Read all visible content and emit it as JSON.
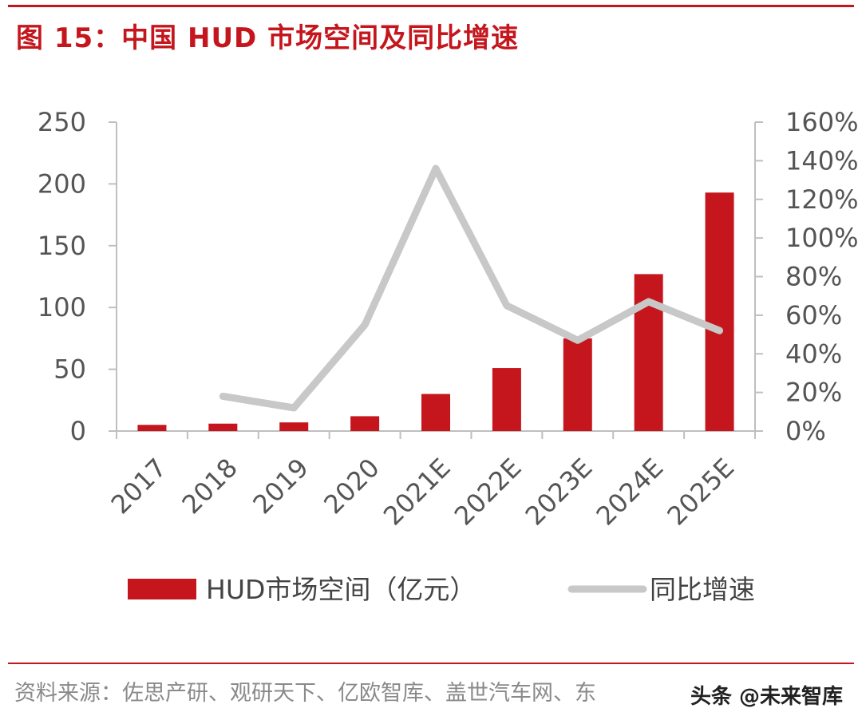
{
  "title": "图 15：中国 HUD 市场空间及同比增速",
  "source": "资料来源：佐思产研、观研天下、亿欧智库、盖世汽车网、东",
  "watermark": "头条 @未来智库",
  "colors": {
    "bar": "#c4161c",
    "line": "#c8c8c8",
    "axis": "#bfbfbf",
    "title": "#c4161c"
  },
  "chart_data": {
    "type": "bar+line",
    "categories": [
      "2017",
      "2018",
      "2019",
      "2020",
      "2021E",
      "2022E",
      "2023E",
      "2024E",
      "2025E"
    ],
    "series": [
      {
        "name": "HUD市场空间（亿元）",
        "type": "bar",
        "axis": "left",
        "values": [
          5,
          6,
          7,
          12,
          30,
          51,
          75,
          127,
          193
        ]
      },
      {
        "name": "同比增速",
        "type": "line",
        "axis": "right",
        "values": [
          null,
          0.18,
          0.12,
          0.55,
          1.36,
          0.65,
          0.47,
          0.67,
          0.52
        ]
      }
    ],
    "y_left": {
      "min": 0,
      "max": 250,
      "ticks": [
        0,
        50,
        100,
        150,
        200,
        250
      ]
    },
    "y_right": {
      "min": 0,
      "max": 1.6,
      "ticks": [
        "0%",
        "20%",
        "40%",
        "60%",
        "80%",
        "100%",
        "120%",
        "140%",
        "160%"
      ]
    },
    "legend_position": "bottom"
  }
}
